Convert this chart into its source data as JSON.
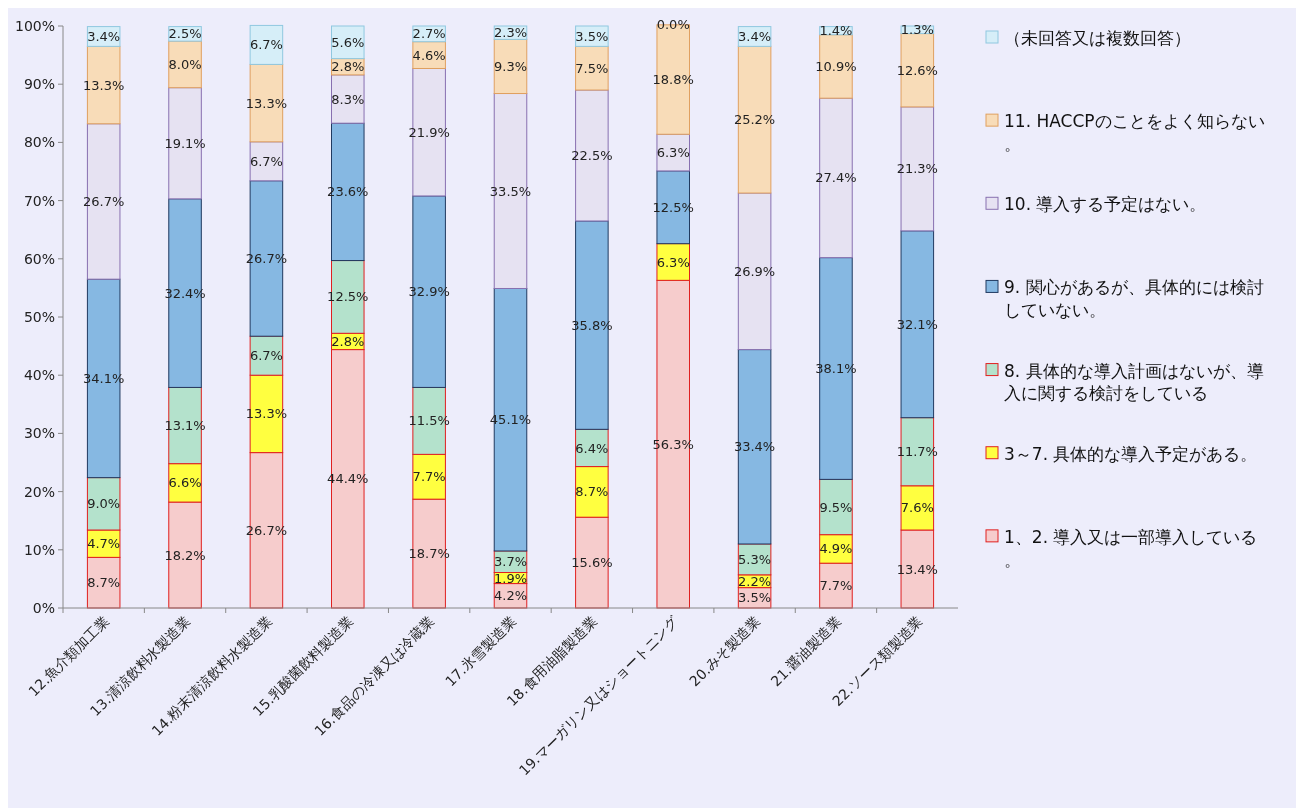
{
  "chart_data": {
    "type": "bar",
    "stacked": true,
    "categories": [
      "12.魚介類加工業",
      "13.清涼飲料水製造業",
      "14.粉末清涼飲料水製造業",
      "15.乳酸菌飲料製造業",
      "16.食品の冷凍又は冷蔵業",
      "17.氷雪製造業",
      "18.食用油脂製造業",
      "19.マーガリン又はショートニング",
      "20.みそ製造業",
      "21.醤油製造業",
      "22.ソース類製造業"
    ],
    "ylim": [
      0,
      100
    ],
    "yticks": [
      {
        "value": 0,
        "label": "0%"
      },
      {
        "value": 10,
        "label": "10%"
      },
      {
        "value": 20,
        "label": "20%"
      },
      {
        "value": 30,
        "label": "30%"
      },
      {
        "value": 40,
        "label": "40%"
      },
      {
        "value": 50,
        "label": "50%"
      },
      {
        "value": 60,
        "label": "60%"
      },
      {
        "value": 70,
        "label": "70%"
      },
      {
        "value": 80,
        "label": "80%"
      },
      {
        "value": 90,
        "label": "90%"
      },
      {
        "value": 100,
        "label": "100%"
      }
    ],
    "legend": "right",
    "grid": false,
    "series": [
      {
        "name": "1、2. 導入又は一部導入している。",
        "color": "#f6cccc",
        "values": [
          8.7,
          18.2,
          26.7,
          44.4,
          18.7,
          4.2,
          15.6,
          56.3,
          3.5,
          7.7,
          13.4
        ],
        "value_labels": [
          "8.7%",
          "18.2%",
          "26.7%",
          "44.4%",
          "18.7%",
          "4.2%",
          "15.6%",
          "56.3%",
          "3.5%",
          "7.7%",
          "13.4%"
        ]
      },
      {
        "name": "3～7. 具体的な導入予定がある。",
        "color": "#ffff40",
        "values": [
          4.7,
          6.6,
          13.3,
          2.8,
          7.7,
          1.9,
          8.7,
          6.3,
          2.2,
          4.9,
          7.6
        ],
        "value_labels": [
          "4.7%",
          "6.6%",
          "13.3%",
          "2.8%",
          "7.7%",
          "1.9%",
          "8.7%",
          "6.3%",
          "2.2%",
          "4.9%",
          "7.6%"
        ]
      },
      {
        "name": "8. 具体的な導入計画はないが、導入に関する検討をしている",
        "color": "#b4e2cc",
        "values": [
          9.0,
          13.1,
          6.7,
          12.5,
          11.5,
          3.7,
          6.4,
          0,
          5.3,
          9.5,
          11.7
        ],
        "value_labels": [
          "9.0%",
          "13.1%",
          "6.7%",
          "12.5%",
          "11.5%",
          "3.7%",
          "6.4%",
          null,
          "5.3%",
          "9.5%",
          "11.7%"
        ]
      },
      {
        "name": "9. 関心があるが、具体的には検討していない。",
        "color": "#86b8e2",
        "values": [
          34.1,
          32.4,
          26.7,
          23.6,
          32.9,
          45.1,
          35.8,
          12.5,
          33.4,
          38.1,
          32.1
        ],
        "value_labels": [
          "34.1%",
          "32.4%",
          "26.7%",
          "23.6%",
          "32.9%",
          "45.1%",
          "35.8%",
          "12.5%",
          "33.4%",
          "38.1%",
          "32.1%"
        ]
      },
      {
        "name": "10. 導入する予定はない。",
        "color": "#e6e2f2",
        "values": [
          26.7,
          19.1,
          6.7,
          8.3,
          21.9,
          33.5,
          22.5,
          6.3,
          26.9,
          27.4,
          21.3
        ],
        "value_labels": [
          "26.7%",
          "19.1%",
          "6.7%",
          "8.3%",
          "21.9%",
          "33.5%",
          "22.5%",
          "6.3%",
          "26.9%",
          "27.4%",
          "21.3%"
        ]
      },
      {
        "name": "11. HACCPのことをよく知らない。",
        "color": "#f8dcb8",
        "values": [
          13.3,
          8.0,
          13.3,
          2.8,
          4.6,
          9.3,
          7.5,
          18.8,
          25.2,
          10.9,
          12.6
        ],
        "value_labels": [
          "13.3%",
          "8.0%",
          "13.3%",
          "2.8%",
          "4.6%",
          "9.3%",
          "7.5%",
          "18.8%",
          "25.2%",
          "10.9%",
          "12.6%"
        ]
      },
      {
        "name": "（未回答又は複数回答）",
        "color": "#d6eef8",
        "values": [
          3.4,
          2.5,
          6.7,
          5.6,
          2.7,
          2.3,
          3.5,
          0.0,
          3.4,
          1.4,
          1.3
        ],
        "value_labels": [
          "3.4%",
          "2.5%",
          "6.7%",
          "5.6%",
          "2.7%",
          "2.3%",
          "3.5%",
          "0.0%",
          "3.4%",
          "1.4%",
          "1.3%"
        ]
      }
    ]
  }
}
